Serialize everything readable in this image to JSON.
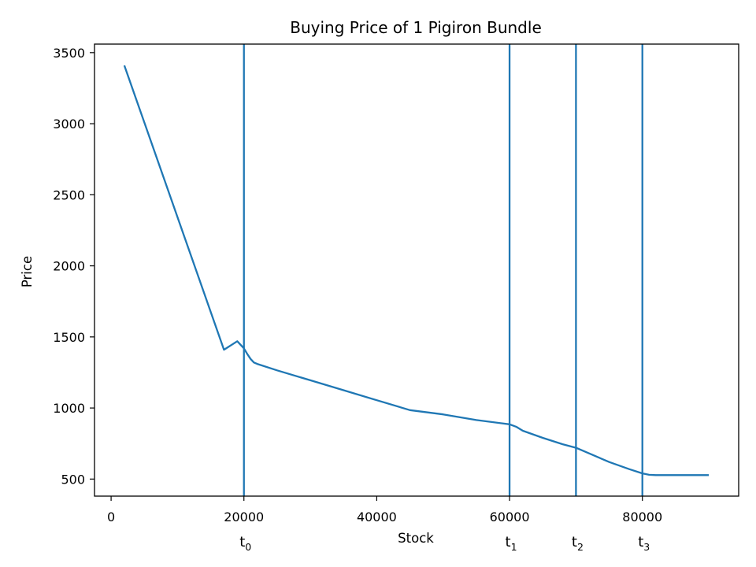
{
  "chart_data": {
    "type": "line",
    "title": "Buying Price of 1 Pigiron Bundle",
    "xlabel": "Stock",
    "ylabel": "Price",
    "xlim": [
      -2500,
      94500
    ],
    "ylim": [
      380,
      3560
    ],
    "x_ticks": [
      0,
      20000,
      40000,
      60000,
      80000
    ],
    "y_ticks": [
      500,
      1000,
      1500,
      2000,
      2500,
      3000,
      3500
    ],
    "grid": false,
    "legend": "none",
    "series_color": "#1f77b4",
    "series": [
      {
        "x": [
          2000,
          5000,
          8000,
          11000,
          14000,
          17000,
          19000,
          20000,
          20500,
          21000,
          21500,
          22000,
          25000,
          30000,
          35000,
          40000,
          45000,
          50000,
          55000,
          60000,
          61000,
          62000,
          65000,
          68000,
          70000,
          72000,
          75000,
          78000,
          80000,
          81000,
          82000,
          85000,
          90000
        ],
        "y": [
          3410,
          3010,
          2610,
          2210,
          1810,
          1410,
          1470,
          1420,
          1380,
          1345,
          1320,
          1310,
          1265,
          1195,
          1125,
          1055,
          985,
          955,
          915,
          885,
          868,
          840,
          790,
          745,
          720,
          680,
          620,
          570,
          540,
          530,
          528,
          528,
          528
        ]
      }
    ],
    "vertical_markers": [
      {
        "x": 20000,
        "base": "t",
        "sub": "0"
      },
      {
        "x": 60000,
        "base": "t",
        "sub": "1"
      },
      {
        "x": 70000,
        "base": "t",
        "sub": "2"
      },
      {
        "x": 80000,
        "base": "t",
        "sub": "3"
      }
    ]
  }
}
